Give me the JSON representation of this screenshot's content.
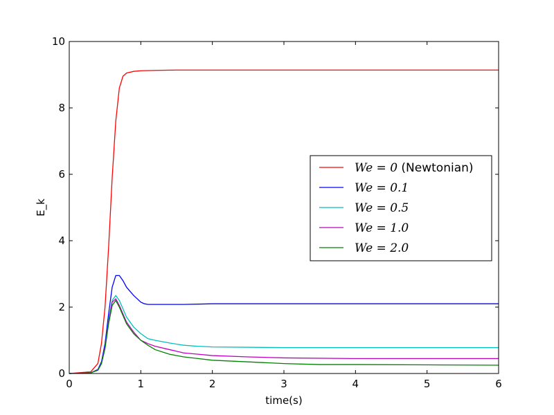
{
  "chart_data": {
    "type": "line",
    "xlabel": "time(s)",
    "ylabel": "E_k",
    "xlim": [
      0,
      6
    ],
    "ylim": [
      0,
      10
    ],
    "xticks": [
      0,
      1,
      2,
      3,
      4,
      5,
      6
    ],
    "yticks": [
      0,
      2,
      4,
      6,
      8,
      10
    ],
    "legend_position": "center-right",
    "grid": false,
    "series": [
      {
        "name": "We = 0 (Newtonian)",
        "color": "#ff0000",
        "x": [
          0,
          0.3,
          0.4,
          0.45,
          0.5,
          0.55,
          0.6,
          0.65,
          0.7,
          0.75,
          0.8,
          0.9,
          1.0,
          1.2,
          1.5,
          2,
          3,
          4,
          5,
          6
        ],
        "y": [
          0,
          0.05,
          0.3,
          0.9,
          2.0,
          3.8,
          5.9,
          7.6,
          8.6,
          8.95,
          9.05,
          9.1,
          9.12,
          9.13,
          9.14,
          9.14,
          9.14,
          9.14,
          9.14,
          9.14
        ]
      },
      {
        "name": "We = 0.1",
        "color": "#0000ff",
        "x": [
          0,
          0.3,
          0.4,
          0.45,
          0.5,
          0.55,
          0.6,
          0.65,
          0.7,
          0.75,
          0.8,
          0.9,
          1.0,
          1.05,
          1.1,
          1.2,
          1.4,
          1.6,
          1.8,
          2,
          2.5,
          3,
          4,
          5,
          6
        ],
        "y": [
          0,
          0.02,
          0.12,
          0.35,
          0.9,
          1.8,
          2.6,
          2.95,
          2.95,
          2.8,
          2.6,
          2.35,
          2.15,
          2.1,
          2.08,
          2.08,
          2.08,
          2.08,
          2.09,
          2.1,
          2.1,
          2.1,
          2.1,
          2.1,
          2.1
        ]
      },
      {
        "name": "We = 0.5",
        "color": "#00bfbf",
        "x": [
          0,
          0.3,
          0.4,
          0.45,
          0.5,
          0.55,
          0.6,
          0.65,
          0.7,
          0.75,
          0.8,
          0.9,
          1.0,
          1.1,
          1.2,
          1.4,
          1.6,
          1.8,
          2,
          2.5,
          3,
          4,
          5,
          6
        ],
        "y": [
          0,
          0.02,
          0.1,
          0.3,
          0.8,
          1.6,
          2.2,
          2.35,
          2.2,
          1.95,
          1.7,
          1.4,
          1.2,
          1.05,
          1.0,
          0.92,
          0.85,
          0.82,
          0.8,
          0.79,
          0.78,
          0.78,
          0.78,
          0.78
        ]
      },
      {
        "name": "We = 1.0",
        "color": "#bf00bf",
        "x": [
          0,
          0.3,
          0.4,
          0.45,
          0.5,
          0.55,
          0.6,
          0.65,
          0.7,
          0.75,
          0.8,
          0.9,
          1.0,
          1.1,
          1.2,
          1.4,
          1.6,
          1.8,
          2,
          2.5,
          3,
          4,
          5,
          6
        ],
        "y": [
          0,
          0.02,
          0.1,
          0.3,
          0.8,
          1.55,
          2.15,
          2.25,
          2.05,
          1.8,
          1.55,
          1.25,
          1.0,
          0.9,
          0.82,
          0.72,
          0.62,
          0.58,
          0.54,
          0.5,
          0.47,
          0.45,
          0.45,
          0.45
        ]
      },
      {
        "name": "We = 2.0",
        "color": "#008000",
        "x": [
          0,
          0.3,
          0.4,
          0.45,
          0.5,
          0.55,
          0.6,
          0.65,
          0.7,
          0.75,
          0.8,
          0.9,
          1.0,
          1.1,
          1.2,
          1.4,
          1.6,
          1.8,
          2,
          2.5,
          3,
          3.5,
          4,
          5,
          6
        ],
        "y": [
          0,
          0.02,
          0.1,
          0.3,
          0.75,
          1.5,
          2.05,
          2.2,
          2.0,
          1.75,
          1.5,
          1.2,
          1.0,
          0.85,
          0.72,
          0.58,
          0.5,
          0.45,
          0.4,
          0.35,
          0.3,
          0.27,
          0.27,
          0.26,
          0.25
        ]
      }
    ]
  },
  "legend": {
    "entries": [
      {
        "math": "We = 0",
        "suffix": " (Newtonian)"
      },
      {
        "math": "We = 0.1",
        "suffix": ""
      },
      {
        "math": "We = 0.5",
        "suffix": ""
      },
      {
        "math": "We = 1.0",
        "suffix": ""
      },
      {
        "math": "We = 2.0",
        "suffix": ""
      }
    ]
  }
}
